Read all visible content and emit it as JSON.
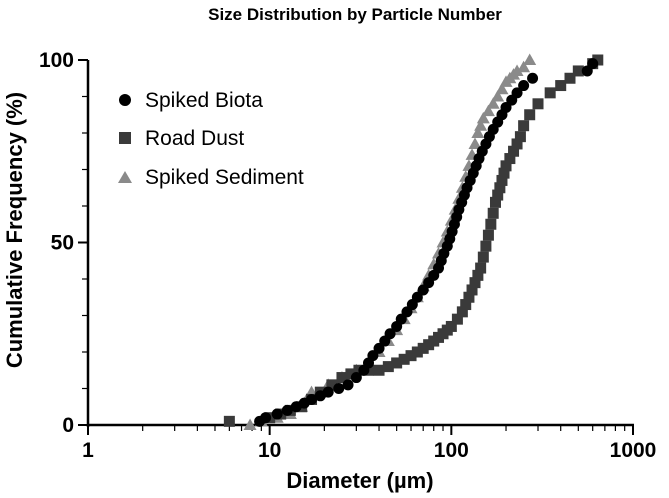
{
  "chart_data": {
    "type": "scatter",
    "title": "Size Distribution by Particle Number",
    "xlabel": "Diameter (µm)",
    "ylabel": "Cumulative Frequency  (%)",
    "xscale": "log",
    "xlim": [
      1,
      1000
    ],
    "ylim": [
      0,
      100
    ],
    "xticks": [
      1,
      10,
      100,
      1000
    ],
    "xtick_labels": [
      "1",
      "10",
      "100",
      "1000"
    ],
    "yticks": [
      0,
      50,
      100
    ],
    "ytick_labels": [
      "0",
      "50",
      "100"
    ],
    "legend_position": "top-left",
    "colors": {
      "spiked_biota": "#000000",
      "road_dust": "#3a3a3a",
      "spiked_sediment": "#8a8a8a"
    },
    "series": [
      {
        "name": "Spiked Biota",
        "marker": "circle",
        "color": "#000000",
        "x": [
          8.8,
          9.5,
          11,
          12.5,
          14,
          15.5,
          17,
          19,
          21,
          24,
          27,
          30,
          33,
          35,
          37,
          40,
          43,
          46,
          50,
          53,
          57,
          61,
          65,
          70,
          75,
          80,
          85,
          88,
          91,
          95,
          98,
          101,
          104,
          107,
          110,
          114,
          118,
          122,
          127,
          132,
          137,
          142,
          148,
          155,
          162,
          170,
          180,
          190,
          200,
          215,
          230,
          250,
          280,
          560,
          600
        ],
        "y": [
          1,
          2,
          3,
          4,
          5,
          6,
          7,
          8,
          9,
          10,
          11,
          13,
          15,
          17,
          19,
          21,
          23,
          25,
          27,
          29,
          31,
          33,
          35,
          37,
          39,
          41,
          43,
          45,
          47,
          49,
          51,
          53,
          55,
          57,
          59,
          61,
          63,
          65,
          67,
          69,
          71,
          73,
          75,
          77,
          79,
          81,
          83,
          85,
          87,
          89,
          91,
          93,
          95,
          97,
          99
        ]
      },
      {
        "name": "Road Dust",
        "marker": "square",
        "color": "#3a3a3a",
        "x": [
          6,
          10,
          11.5,
          13,
          15,
          17,
          19,
          22,
          25,
          28,
          31,
          35,
          40,
          45,
          50,
          55,
          60,
          65,
          70,
          75,
          80,
          85,
          90,
          95,
          100,
          108,
          115,
          120,
          125,
          130,
          135,
          140,
          145,
          150,
          155,
          160,
          165,
          170,
          175,
          180,
          185,
          190,
          195,
          200,
          210,
          220,
          230,
          240,
          250,
          270,
          300,
          350,
          400,
          450,
          500,
          600,
          640
        ],
        "y": [
          1,
          2,
          3,
          4,
          5,
          7,
          9,
          11,
          13,
          14,
          15,
          15,
          15,
          16,
          17,
          18,
          19,
          20,
          21,
          22,
          23,
          24,
          25,
          26,
          27,
          29,
          31,
          33,
          35,
          37,
          39,
          41,
          43,
          46,
          49,
          52,
          55,
          58,
          61,
          63,
          65,
          67,
          69,
          71,
          73,
          75,
          77,
          79,
          82,
          85,
          88,
          91,
          93,
          95,
          97,
          99,
          100
        ]
      },
      {
        "name": "Spiked Sediment",
        "marker": "triangle",
        "color": "#8a8a8a",
        "x": [
          7.8,
          9,
          11,
          13,
          15,
          16,
          17,
          21,
          25,
          30,
          35,
          40,
          45,
          50,
          55,
          60,
          65,
          70,
          75,
          80,
          85,
          90,
          95,
          100,
          105,
          110,
          115,
          120,
          125,
          130,
          135,
          140,
          145,
          150,
          160,
          170,
          180,
          190,
          200,
          210,
          220,
          230,
          250,
          270
        ],
        "y": [
          0,
          1,
          2,
          3,
          5,
          7,
          9,
          11,
          13,
          15,
          17,
          20,
          23,
          26,
          29,
          32,
          35,
          38,
          41,
          44,
          47,
          50,
          53,
          56,
          59,
          62,
          65,
          68,
          71,
          74,
          77,
          80,
          82,
          84,
          86,
          88,
          90,
          92,
          94,
          95,
          96,
          97,
          98,
          100
        ]
      }
    ]
  }
}
